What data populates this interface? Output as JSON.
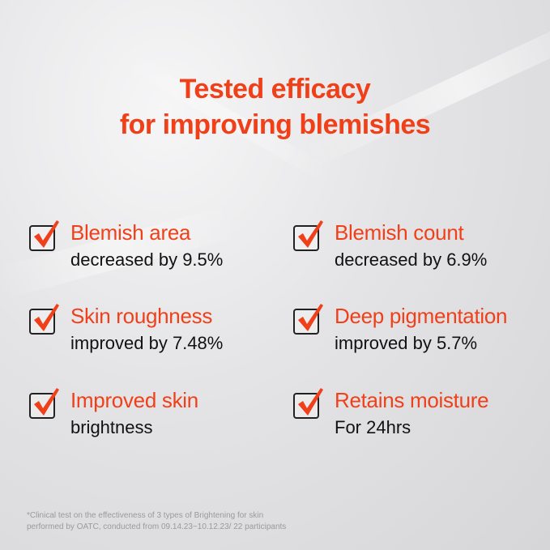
{
  "title": {
    "line1": "Tested efficacy",
    "line2": "for improving blemishes"
  },
  "colors": {
    "accent": "#f0401a",
    "text": "#111111"
  },
  "items": [
    {
      "icon": "checkbox-checked-icon",
      "heading": "Blemish area",
      "detail": "decreased by 9.5%"
    },
    {
      "icon": "checkbox-checked-icon",
      "heading": "Blemish count",
      "detail": "decreased by 6.9%"
    },
    {
      "icon": "checkbox-checked-icon",
      "heading": "Skin roughness",
      "detail": "improved by 7.48%"
    },
    {
      "icon": "checkbox-checked-icon",
      "heading": "Deep pigmentation",
      "detail": "improved by 5.7%"
    },
    {
      "icon": "checkbox-checked-icon",
      "heading": "Improved skin",
      "detail": "brightness"
    },
    {
      "icon": "checkbox-checked-icon",
      "heading": "Retains moisture",
      "detail": "For 24hrs"
    }
  ],
  "footnote": {
    "line1": "*Clinical test on the effectiveness of 3 types of Brightening for skin",
    "line2": "performed by OATC, conducted from 09.14.23~10.12.23/ 22 participants"
  }
}
